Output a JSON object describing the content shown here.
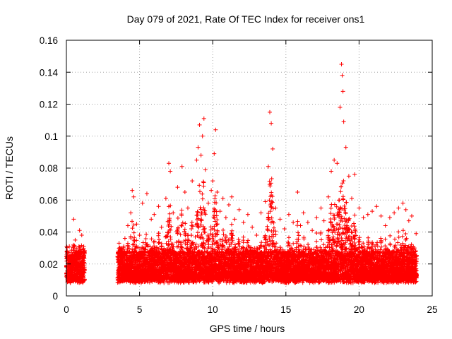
{
  "chart_data": {
    "type": "scatter",
    "title": "Day 079 of 2021, Rate Of TEC Index for receiver ons1",
    "xlabel": "GPS time / hours",
    "ylabel": "ROTI / TECUs",
    "xlim": [
      0,
      25
    ],
    "ylim": [
      0,
      0.16
    ],
    "xticks": [
      "0",
      "5",
      "10",
      "15",
      "20",
      "25"
    ],
    "yticks": [
      "0",
      "0.02",
      "0.04",
      "0.06",
      "0.08",
      "0.1",
      "0.12",
      "0.14",
      "0.16"
    ],
    "grid": true,
    "marker": "+",
    "marker_color": "#ff0000",
    "data_gap_hours": [
      1.25,
      3.5
    ],
    "series": [
      {
        "x": [
          0.05,
          0.2,
          0.35,
          0.5,
          0.6,
          0.75,
          0.9,
          1.05,
          1.2,
          3.6,
          3.8,
          4.0,
          4.2,
          4.4,
          4.5,
          4.6,
          4.8,
          5.0,
          5.2,
          5.5,
          5.8,
          6.0,
          6.3,
          6.5,
          6.8,
          7.0,
          7.1,
          7.3,
          7.6,
          7.9,
          8.1,
          8.3,
          8.6,
          8.9,
          9.0,
          9.1,
          9.2,
          9.3,
          9.4,
          9.5,
          9.7,
          9.9,
          10.0,
          10.1,
          10.2,
          10.3,
          10.5,
          10.7,
          10.9,
          11.1,
          11.3,
          11.5,
          11.8,
          12.1,
          12.4,
          12.7,
          13.0,
          13.3,
          13.6,
          13.8,
          13.9,
          14.0,
          14.1,
          14.3,
          14.6,
          14.9,
          15.2,
          15.5,
          15.8,
          16.0,
          16.2,
          16.5,
          16.8,
          17.1,
          17.4,
          17.6,
          17.9,
          18.1,
          18.3,
          18.5,
          18.7,
          18.8,
          18.85,
          18.9,
          18.95,
          19.1,
          19.3,
          19.5,
          19.7,
          20.0,
          20.3,
          20.6,
          20.9,
          21.2,
          21.5,
          21.8,
          22.1,
          22.4,
          22.7,
          23.0,
          23.2,
          23.4,
          23.6,
          23.9
        ],
        "y": [
          0.024,
          0.031,
          0.019,
          0.048,
          0.035,
          0.027,
          0.041,
          0.038,
          0.022,
          0.033,
          0.028,
          0.036,
          0.044,
          0.052,
          0.066,
          0.062,
          0.045,
          0.038,
          0.058,
          0.064,
          0.048,
          0.051,
          0.056,
          0.043,
          0.061,
          0.083,
          0.078,
          0.052,
          0.068,
          0.081,
          0.065,
          0.055,
          0.072,
          0.085,
          0.093,
          0.107,
          0.088,
          0.1,
          0.111,
          0.079,
          0.058,
          0.066,
          0.072,
          0.089,
          0.104,
          0.065,
          0.053,
          0.061,
          0.049,
          0.057,
          0.062,
          0.048,
          0.054,
          0.046,
          0.051,
          0.043,
          0.038,
          0.052,
          0.059,
          0.081,
          0.115,
          0.108,
          0.092,
          0.055,
          0.048,
          0.042,
          0.051,
          0.046,
          0.065,
          0.044,
          0.052,
          0.046,
          0.041,
          0.049,
          0.055,
          0.047,
          0.062,
          0.078,
          0.085,
          0.083,
          0.118,
          0.145,
          0.138,
          0.128,
          0.109,
          0.093,
          0.075,
          0.061,
          0.076,
          0.055,
          0.049,
          0.051,
          0.053,
          0.056,
          0.05,
          0.044,
          0.049,
          0.052,
          0.055,
          0.058,
          0.054,
          0.047,
          0.05,
          0.039
        ]
      }
    ]
  }
}
